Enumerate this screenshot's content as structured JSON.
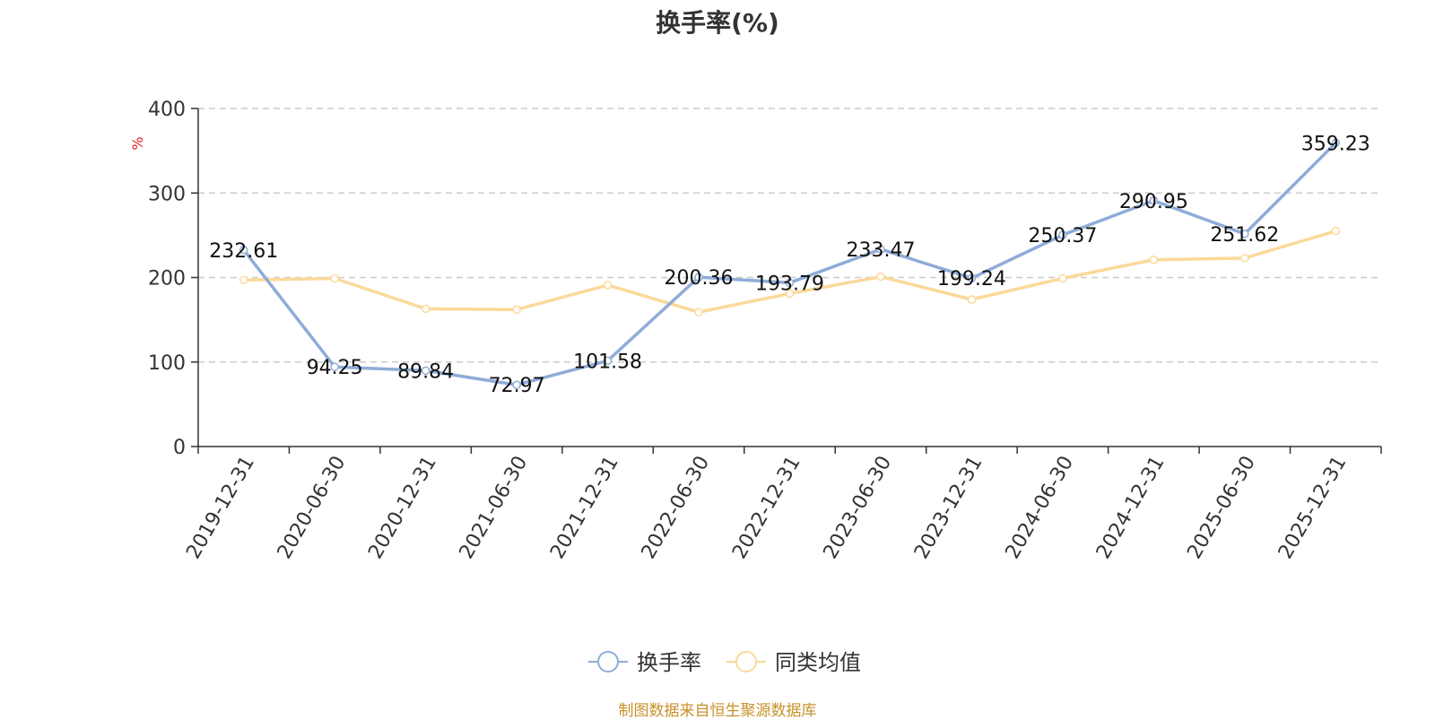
{
  "chart_data": {
    "type": "line",
    "title": "换手率(%)",
    "ylabel": "%",
    "ylim": [
      0,
      400
    ],
    "yticks": [
      0,
      100,
      200,
      300,
      400
    ],
    "grid": true,
    "categories": [
      "2019-12-31",
      "2020-06-30",
      "2020-12-31",
      "2021-06-30",
      "2021-12-31",
      "2022-06-30",
      "2022-12-31",
      "2023-06-30",
      "2023-12-31",
      "2024-06-30",
      "2024-12-31",
      "2025-06-30",
      "2025-12-31"
    ],
    "series": [
      {
        "name": "换手率",
        "color": "#8eacd8",
        "labeled": true,
        "values": [
          232.61,
          94.25,
          89.84,
          72.97,
          101.58,
          200.36,
          193.79,
          233.47,
          199.24,
          250.37,
          290.95,
          251.62,
          359.23
        ]
      },
      {
        "name": "同类均值",
        "color": "#fbd99a",
        "labeled": false,
        "values": [
          197,
          199,
          163,
          162,
          191,
          159,
          181,
          201,
          174,
          199,
          221,
          223,
          255
        ]
      }
    ],
    "legend_position": "bottom-center"
  },
  "source": "制图数据来自恒生聚源数据库",
  "colors": {
    "source_text": "#c8912a",
    "ylabel_text": "#e02020",
    "grid": "#cccccc",
    "axis": "#333333"
  }
}
